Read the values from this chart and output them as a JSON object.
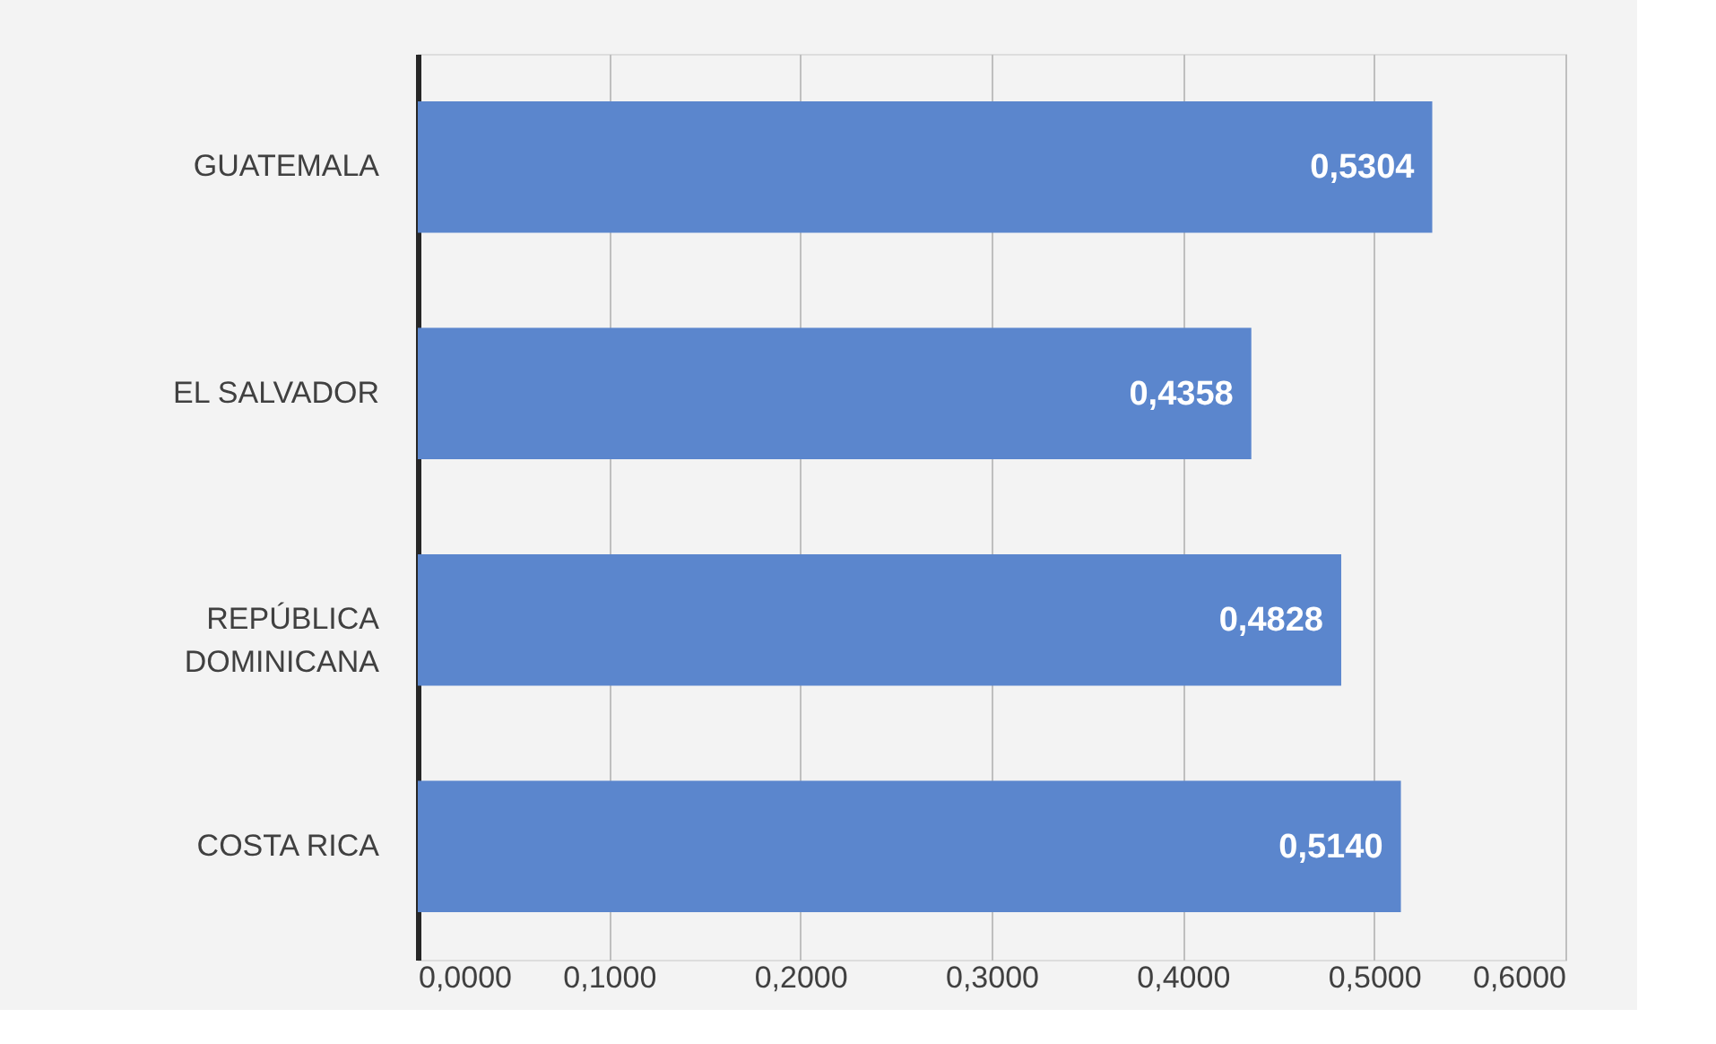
{
  "chart_data": {
    "type": "bar",
    "orientation": "horizontal",
    "categories": [
      "GUATEMALA",
      "EL SALVADOR",
      "REPÚBLICA DOMINICANA",
      "COSTA RICA"
    ],
    "values": [
      0.5304,
      0.4358,
      0.4828,
      0.514
    ],
    "value_labels": [
      "0,5304",
      "0,4358",
      "0,4828",
      "0,5140"
    ],
    "color": "#5b86cd",
    "xlim": [
      0,
      0.6
    ],
    "xticks": [
      {
        "value": 0,
        "label": "0,0000"
      },
      {
        "value": 0.1,
        "label": "0,1000"
      },
      {
        "value": 0.2,
        "label": "0,2000"
      },
      {
        "value": 0.3,
        "label": "0,3000"
      },
      {
        "value": 0.4,
        "label": "0,4000"
      },
      {
        "value": 0.5,
        "label": "0,5000"
      },
      {
        "value": 0.6,
        "label": "0,6000"
      }
    ],
    "grid": "x"
  }
}
